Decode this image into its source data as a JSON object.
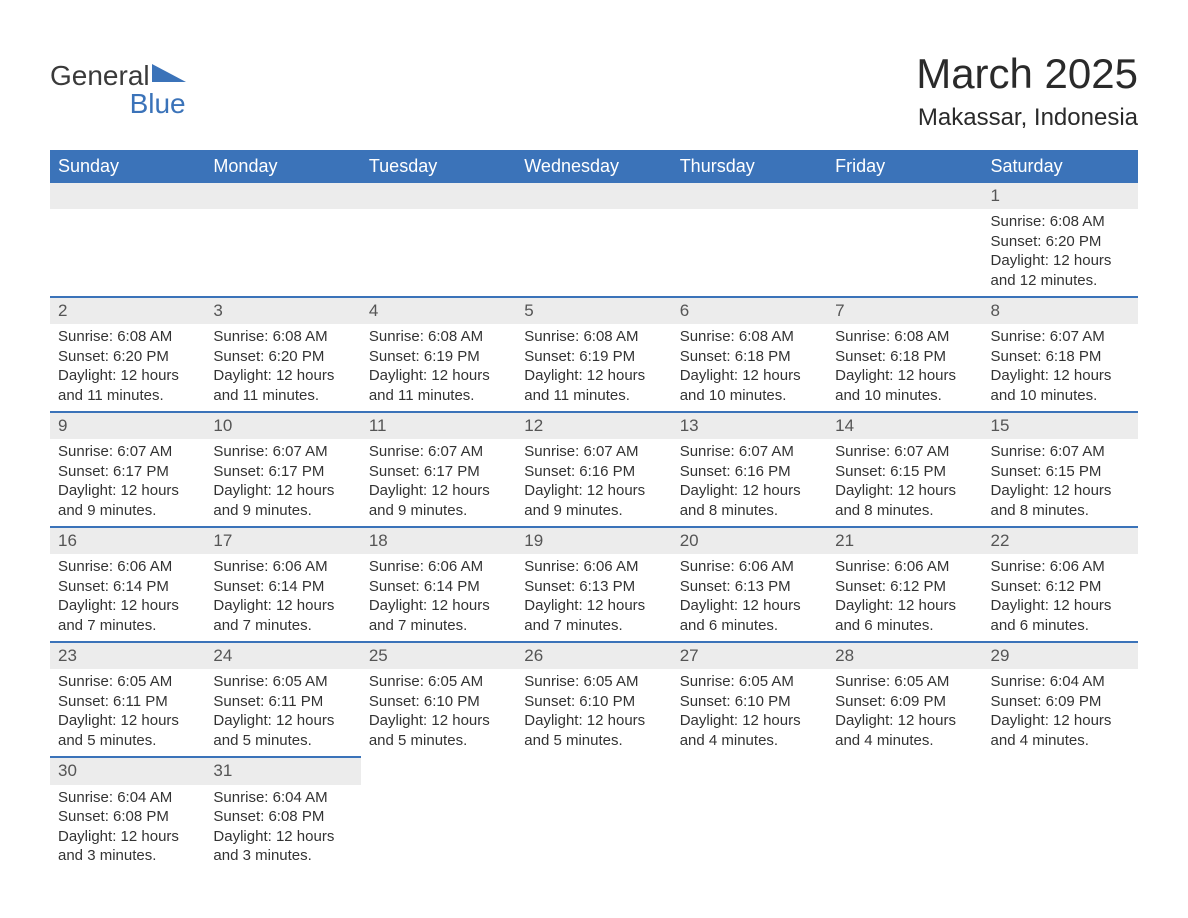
{
  "logo": {
    "word1": "General",
    "word2": "Blue"
  },
  "title": "March 2025",
  "location": "Makassar, Indonesia",
  "colors": {
    "header_bg": "#3b73b9",
    "header_text": "#ffffff",
    "daynum_bg": "#ececec",
    "border": "#3b73b9",
    "body_text": "#333333",
    "page_bg": "#ffffff"
  },
  "weekdays": [
    "Sunday",
    "Monday",
    "Tuesday",
    "Wednesday",
    "Thursday",
    "Friday",
    "Saturday"
  ],
  "weeks": [
    [
      null,
      null,
      null,
      null,
      null,
      null,
      {
        "n": "1",
        "sr": "Sunrise: 6:08 AM",
        "ss": "Sunset: 6:20 PM",
        "d1": "Daylight: 12 hours",
        "d2": "and 12 minutes."
      }
    ],
    [
      {
        "n": "2",
        "sr": "Sunrise: 6:08 AM",
        "ss": "Sunset: 6:20 PM",
        "d1": "Daylight: 12 hours",
        "d2": "and 11 minutes."
      },
      {
        "n": "3",
        "sr": "Sunrise: 6:08 AM",
        "ss": "Sunset: 6:20 PM",
        "d1": "Daylight: 12 hours",
        "d2": "and 11 minutes."
      },
      {
        "n": "4",
        "sr": "Sunrise: 6:08 AM",
        "ss": "Sunset: 6:19 PM",
        "d1": "Daylight: 12 hours",
        "d2": "and 11 minutes."
      },
      {
        "n": "5",
        "sr": "Sunrise: 6:08 AM",
        "ss": "Sunset: 6:19 PM",
        "d1": "Daylight: 12 hours",
        "d2": "and 11 minutes."
      },
      {
        "n": "6",
        "sr": "Sunrise: 6:08 AM",
        "ss": "Sunset: 6:18 PM",
        "d1": "Daylight: 12 hours",
        "d2": "and 10 minutes."
      },
      {
        "n": "7",
        "sr": "Sunrise: 6:08 AM",
        "ss": "Sunset: 6:18 PM",
        "d1": "Daylight: 12 hours",
        "d2": "and 10 minutes."
      },
      {
        "n": "8",
        "sr": "Sunrise: 6:07 AM",
        "ss": "Sunset: 6:18 PM",
        "d1": "Daylight: 12 hours",
        "d2": "and 10 minutes."
      }
    ],
    [
      {
        "n": "9",
        "sr": "Sunrise: 6:07 AM",
        "ss": "Sunset: 6:17 PM",
        "d1": "Daylight: 12 hours",
        "d2": "and 9 minutes."
      },
      {
        "n": "10",
        "sr": "Sunrise: 6:07 AM",
        "ss": "Sunset: 6:17 PM",
        "d1": "Daylight: 12 hours",
        "d2": "and 9 minutes."
      },
      {
        "n": "11",
        "sr": "Sunrise: 6:07 AM",
        "ss": "Sunset: 6:17 PM",
        "d1": "Daylight: 12 hours",
        "d2": "and 9 minutes."
      },
      {
        "n": "12",
        "sr": "Sunrise: 6:07 AM",
        "ss": "Sunset: 6:16 PM",
        "d1": "Daylight: 12 hours",
        "d2": "and 9 minutes."
      },
      {
        "n": "13",
        "sr": "Sunrise: 6:07 AM",
        "ss": "Sunset: 6:16 PM",
        "d1": "Daylight: 12 hours",
        "d2": "and 8 minutes."
      },
      {
        "n": "14",
        "sr": "Sunrise: 6:07 AM",
        "ss": "Sunset: 6:15 PM",
        "d1": "Daylight: 12 hours",
        "d2": "and 8 minutes."
      },
      {
        "n": "15",
        "sr": "Sunrise: 6:07 AM",
        "ss": "Sunset: 6:15 PM",
        "d1": "Daylight: 12 hours",
        "d2": "and 8 minutes."
      }
    ],
    [
      {
        "n": "16",
        "sr": "Sunrise: 6:06 AM",
        "ss": "Sunset: 6:14 PM",
        "d1": "Daylight: 12 hours",
        "d2": "and 7 minutes."
      },
      {
        "n": "17",
        "sr": "Sunrise: 6:06 AM",
        "ss": "Sunset: 6:14 PM",
        "d1": "Daylight: 12 hours",
        "d2": "and 7 minutes."
      },
      {
        "n": "18",
        "sr": "Sunrise: 6:06 AM",
        "ss": "Sunset: 6:14 PM",
        "d1": "Daylight: 12 hours",
        "d2": "and 7 minutes."
      },
      {
        "n": "19",
        "sr": "Sunrise: 6:06 AM",
        "ss": "Sunset: 6:13 PM",
        "d1": "Daylight: 12 hours",
        "d2": "and 7 minutes."
      },
      {
        "n": "20",
        "sr": "Sunrise: 6:06 AM",
        "ss": "Sunset: 6:13 PM",
        "d1": "Daylight: 12 hours",
        "d2": "and 6 minutes."
      },
      {
        "n": "21",
        "sr": "Sunrise: 6:06 AM",
        "ss": "Sunset: 6:12 PM",
        "d1": "Daylight: 12 hours",
        "d2": "and 6 minutes."
      },
      {
        "n": "22",
        "sr": "Sunrise: 6:06 AM",
        "ss": "Sunset: 6:12 PM",
        "d1": "Daylight: 12 hours",
        "d2": "and 6 minutes."
      }
    ],
    [
      {
        "n": "23",
        "sr": "Sunrise: 6:05 AM",
        "ss": "Sunset: 6:11 PM",
        "d1": "Daylight: 12 hours",
        "d2": "and 5 minutes."
      },
      {
        "n": "24",
        "sr": "Sunrise: 6:05 AM",
        "ss": "Sunset: 6:11 PM",
        "d1": "Daylight: 12 hours",
        "d2": "and 5 minutes."
      },
      {
        "n": "25",
        "sr": "Sunrise: 6:05 AM",
        "ss": "Sunset: 6:10 PM",
        "d1": "Daylight: 12 hours",
        "d2": "and 5 minutes."
      },
      {
        "n": "26",
        "sr": "Sunrise: 6:05 AM",
        "ss": "Sunset: 6:10 PM",
        "d1": "Daylight: 12 hours",
        "d2": "and 5 minutes."
      },
      {
        "n": "27",
        "sr": "Sunrise: 6:05 AM",
        "ss": "Sunset: 6:10 PM",
        "d1": "Daylight: 12 hours",
        "d2": "and 4 minutes."
      },
      {
        "n": "28",
        "sr": "Sunrise: 6:05 AM",
        "ss": "Sunset: 6:09 PM",
        "d1": "Daylight: 12 hours",
        "d2": "and 4 minutes."
      },
      {
        "n": "29",
        "sr": "Sunrise: 6:04 AM",
        "ss": "Sunset: 6:09 PM",
        "d1": "Daylight: 12 hours",
        "d2": "and 4 minutes."
      }
    ],
    [
      {
        "n": "30",
        "sr": "Sunrise: 6:04 AM",
        "ss": "Sunset: 6:08 PM",
        "d1": "Daylight: 12 hours",
        "d2": "and 3 minutes."
      },
      {
        "n": "31",
        "sr": "Sunrise: 6:04 AM",
        "ss": "Sunset: 6:08 PM",
        "d1": "Daylight: 12 hours",
        "d2": "and 3 minutes."
      },
      null,
      null,
      null,
      null,
      null
    ]
  ]
}
